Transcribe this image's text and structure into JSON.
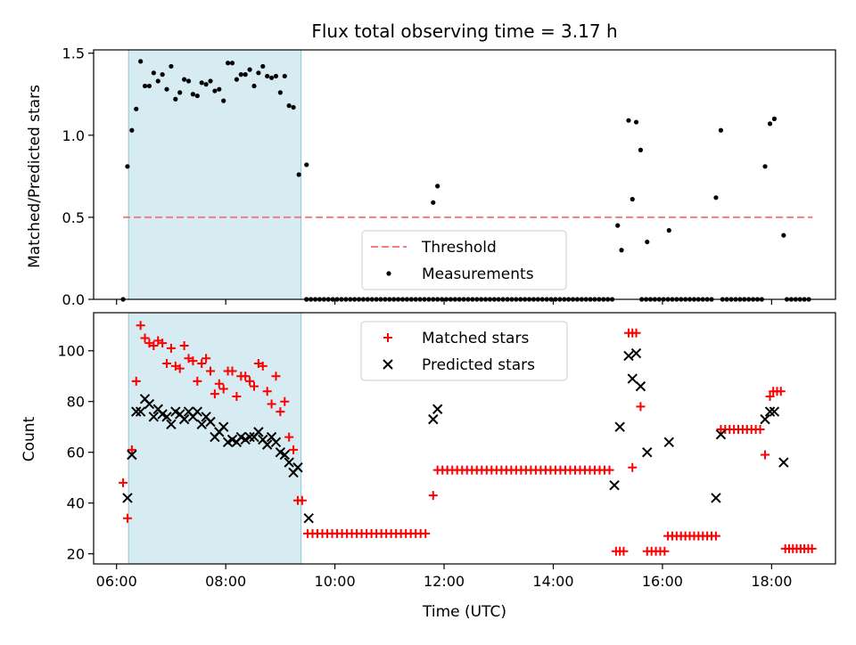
{
  "chart_data": [
    {
      "type": "scatter",
      "title": "Flux total observing time = 3.17 h",
      "xlabel": "",
      "ylabel": "Matched/Predicted stars",
      "xlim": [
        5.58,
        19.17
      ],
      "ylim": [
        0,
        1.52
      ],
      "x_ticks": [
        6,
        8,
        10,
        12,
        14,
        16,
        18
      ],
      "x_tick_labels": [
        "",
        "",
        "",
        "",
        "",
        "",
        ""
      ],
      "y_ticks": [
        0.0,
        0.5,
        1.0,
        1.5
      ],
      "y_tick_labels": [
        "0.0",
        "0.5",
        "1.0",
        "1.5"
      ],
      "shaded_region": [
        6.22,
        9.38
      ],
      "legend_position": "lower-center",
      "threshold": {
        "name": "Threshold",
        "value": 0.5,
        "x_range": [
          6.12,
          18.75
        ],
        "color": "#f08080"
      },
      "measurements": {
        "name": "Measurements",
        "color": "#000000",
        "points": [
          [
            6.12,
            0.0
          ],
          [
            6.2,
            0.81
          ],
          [
            6.28,
            1.03
          ],
          [
            6.36,
            1.16
          ],
          [
            6.44,
            1.45
          ],
          [
            6.52,
            1.3
          ],
          [
            6.6,
            1.3
          ],
          [
            6.68,
            1.38
          ],
          [
            6.76,
            1.33
          ],
          [
            6.84,
            1.37
          ],
          [
            6.92,
            1.28
          ],
          [
            7.0,
            1.42
          ],
          [
            7.08,
            1.22
          ],
          [
            7.16,
            1.26
          ],
          [
            7.24,
            1.34
          ],
          [
            7.32,
            1.33
          ],
          [
            7.4,
            1.25
          ],
          [
            7.48,
            1.24
          ],
          [
            7.56,
            1.32
          ],
          [
            7.64,
            1.31
          ],
          [
            7.72,
            1.33
          ],
          [
            7.8,
            1.27
          ],
          [
            7.88,
            1.28
          ],
          [
            7.96,
            1.21
          ],
          [
            8.04,
            1.44
          ],
          [
            8.12,
            1.44
          ],
          [
            8.2,
            1.34
          ],
          [
            8.28,
            1.37
          ],
          [
            8.36,
            1.37
          ],
          [
            8.44,
            1.4
          ],
          [
            8.52,
            1.3
          ],
          [
            8.6,
            1.38
          ],
          [
            8.68,
            1.42
          ],
          [
            8.76,
            1.36
          ],
          [
            8.84,
            1.35
          ],
          [
            8.92,
            1.36
          ],
          [
            9.0,
            1.26
          ],
          [
            9.08,
            1.36
          ],
          [
            9.16,
            1.18
          ],
          [
            9.24,
            1.17
          ],
          [
            9.34,
            0.76
          ],
          [
            9.48,
            0.82
          ],
          [
            9.48,
            0.0
          ],
          [
            11.8,
            0.59
          ],
          [
            11.88,
            0.69
          ],
          [
            15.18,
            0.45
          ],
          [
            15.25,
            0.3
          ],
          [
            15.38,
            1.09
          ],
          [
            15.45,
            0.61
          ],
          [
            15.52,
            1.08
          ],
          [
            15.6,
            0.91
          ],
          [
            15.72,
            0.35
          ],
          [
            16.12,
            0.42
          ],
          [
            16.98,
            0.62
          ],
          [
            17.07,
            1.03
          ],
          [
            17.88,
            0.81
          ],
          [
            17.97,
            1.07
          ],
          [
            18.05,
            1.1
          ],
          [
            18.22,
            0.39
          ]
        ],
        "zero_segments": [
          [
            9.48,
            15.1
          ],
          [
            15.62,
            16.9
          ],
          [
            17.1,
            17.85
          ],
          [
            18.28,
            18.75
          ]
        ]
      }
    },
    {
      "type": "scatter",
      "title": "",
      "xlabel": "Time (UTC)",
      "ylabel": "Count",
      "xlim": [
        5.58,
        19.17
      ],
      "ylim": [
        16,
        115
      ],
      "x_ticks": [
        6,
        8,
        10,
        12,
        14,
        16,
        18
      ],
      "x_tick_labels": [
        "06:00",
        "08:00",
        "10:00",
        "12:00",
        "14:00",
        "16:00",
        "18:00"
      ],
      "y_ticks": [
        20,
        40,
        60,
        80,
        100
      ],
      "y_tick_labels": [
        "20",
        "40",
        "60",
        "80",
        "100"
      ],
      "shaded_region": [
        6.22,
        9.38
      ],
      "legend_position": "upper-center",
      "series": [
        {
          "name": "Matched stars",
          "color": "#ff0000",
          "points": [
            [
              6.12,
              48
            ],
            [
              6.2,
              34
            ],
            [
              6.28,
              61
            ],
            [
              6.36,
              88
            ],
            [
              6.44,
              110
            ],
            [
              6.52,
              105
            ],
            [
              6.6,
              103
            ],
            [
              6.68,
              102
            ],
            [
              6.76,
              104
            ],
            [
              6.84,
              103
            ],
            [
              6.92,
              95
            ],
            [
              7.0,
              101
            ],
            [
              7.08,
              94
            ],
            [
              7.16,
              93
            ],
            [
              7.24,
              102
            ],
            [
              7.32,
              97
            ],
            [
              7.4,
              96
            ],
            [
              7.48,
              88
            ],
            [
              7.56,
              95
            ],
            [
              7.64,
              97
            ],
            [
              7.72,
              92
            ],
            [
              7.8,
              83
            ],
            [
              7.88,
              87
            ],
            [
              7.96,
              85
            ],
            [
              8.04,
              92
            ],
            [
              8.12,
              92
            ],
            [
              8.2,
              82
            ],
            [
              8.28,
              90
            ],
            [
              8.36,
              90
            ],
            [
              8.44,
              88
            ],
            [
              8.52,
              86
            ],
            [
              8.6,
              95
            ],
            [
              8.68,
              94
            ],
            [
              8.76,
              84
            ],
            [
              8.84,
              79
            ],
            [
              8.92,
              90
            ],
            [
              9.0,
              76
            ],
            [
              9.08,
              80
            ],
            [
              9.16,
              66
            ],
            [
              9.24,
              61
            ],
            [
              9.32,
              41
            ],
            [
              9.4,
              41
            ],
            [
              11.8,
              43
            ],
            [
              15.45,
              54
            ],
            [
              15.6,
              78
            ]
          ],
          "flat_runs": [
            {
              "value": 28,
              "x_from": 9.5,
              "x_to": 11.72,
              "step": 0.09
            },
            {
              "value": 53,
              "x_from": 11.88,
              "x_to": 15.1,
              "step": 0.09
            },
            {
              "value": 21,
              "x_from": 15.15,
              "x_to": 15.3,
              "step": 0.07
            },
            {
              "value": 107,
              "x_from": 15.38,
              "x_to": 15.52,
              "step": 0.07
            },
            {
              "value": 21,
              "x_from": 15.72,
              "x_to": 16.05,
              "step": 0.08
            },
            {
              "value": 27,
              "x_from": 16.1,
              "x_to": 17.0,
              "step": 0.08
            },
            {
              "value": 69,
              "x_from": 17.07,
              "x_to": 17.8,
              "step": 0.08
            },
            {
              "value": 59,
              "x_from": 17.88,
              "x_to": 17.88,
              "step": 0.08
            },
            {
              "value": 82,
              "x_from": 17.97,
              "x_to": 17.97,
              "step": 0.08
            },
            {
              "value": 84,
              "x_from": 18.03,
              "x_to": 18.18,
              "step": 0.07
            },
            {
              "value": 22,
              "x_from": 18.25,
              "x_to": 18.75,
              "step": 0.07
            }
          ]
        },
        {
          "name": "Predicted stars",
          "color": "#000000",
          "points": [
            [
              6.2,
              42
            ],
            [
              6.28,
              59
            ],
            [
              6.36,
              76
            ],
            [
              6.44,
              76
            ],
            [
              6.52,
              81
            ],
            [
              6.6,
              79
            ],
            [
              6.68,
              74
            ],
            [
              6.76,
              77
            ],
            [
              6.84,
              75
            ],
            [
              6.92,
              74
            ],
            [
              7.0,
              71
            ],
            [
              7.08,
              76
            ],
            [
              7.16,
              75
            ],
            [
              7.24,
              73
            ],
            [
              7.32,
              76
            ],
            [
              7.4,
              74
            ],
            [
              7.48,
              76
            ],
            [
              7.56,
              71
            ],
            [
              7.64,
              74
            ],
            [
              7.72,
              72
            ],
            [
              7.8,
              66
            ],
            [
              7.88,
              68
            ],
            [
              7.96,
              70
            ],
            [
              8.04,
              64
            ],
            [
              8.12,
              65
            ],
            [
              8.2,
              64
            ],
            [
              8.28,
              66
            ],
            [
              8.36,
              65
            ],
            [
              8.44,
              66
            ],
            [
              8.52,
              66
            ],
            [
              8.6,
              68
            ],
            [
              8.68,
              65
            ],
            [
              8.76,
              63
            ],
            [
              8.84,
              66
            ],
            [
              8.92,
              64
            ],
            [
              9.0,
              60
            ],
            [
              9.08,
              59
            ],
            [
              9.16,
              56
            ],
            [
              9.24,
              52
            ],
            [
              9.32,
              54
            ],
            [
              9.52,
              34
            ],
            [
              11.8,
              73
            ],
            [
              11.88,
              77
            ],
            [
              15.12,
              47
            ],
            [
              15.22,
              70
            ],
            [
              15.38,
              98
            ],
            [
              15.45,
              89
            ],
            [
              15.52,
              99
            ],
            [
              15.6,
              86
            ],
            [
              15.72,
              60
            ],
            [
              16.12,
              64
            ],
            [
              16.98,
              42
            ],
            [
              17.07,
              67
            ],
            [
              17.88,
              73
            ],
            [
              17.97,
              76
            ],
            [
              18.05,
              76
            ],
            [
              18.22,
              56
            ]
          ]
        }
      ]
    }
  ]
}
